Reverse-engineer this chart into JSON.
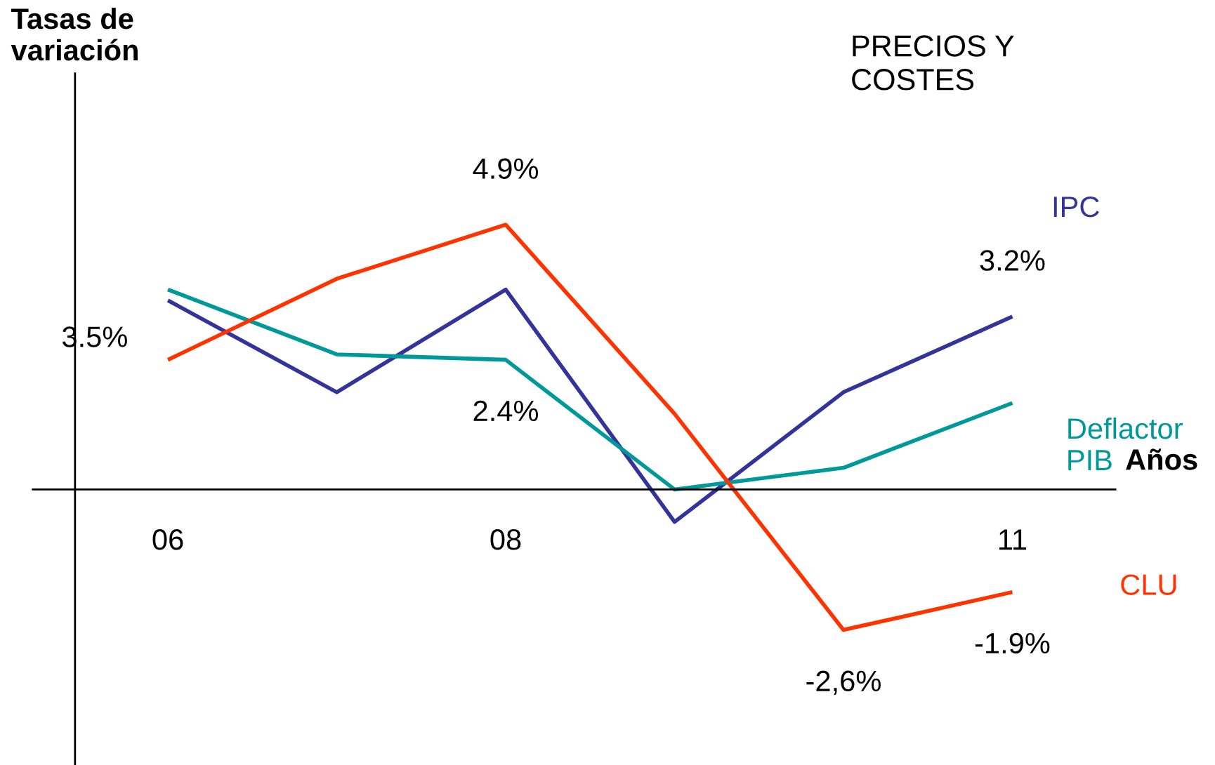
{
  "chart_data": {
    "type": "line",
    "title": "PRECIOS Y\nCOSTES",
    "xlabel": "Años",
    "annotations": [
      "Tasas de\nvariación"
    ],
    "categories": [
      "06",
      null,
      "08",
      null,
      null,
      "11"
    ],
    "ylim": [
      -5.1,
      7.7
    ],
    "tick_labels": "x",
    "legend": false,
    "grid": false,
    "marker": "none",
    "line_style": "solid",
    "series": [
      {
        "name": "IPC",
        "color": "#333399",
        "values": [
          3.5,
          1.8,
          3.7,
          -0.6,
          1.8,
          3.2
        ],
        "value_labels": [
          "3.5%",
          null,
          null,
          null,
          null,
          "3.2%"
        ]
      },
      {
        "name": "Deflactor\nPIB",
        "color": "#009999",
        "values": [
          3.7,
          2.5,
          2.4,
          0.0,
          0.4,
          1.6
        ],
        "value_labels": [
          null,
          null,
          "2.4%",
          null,
          null,
          null
        ]
      },
      {
        "name": "CLU",
        "color": "#ff3300",
        "values": [
          2.4,
          3.9,
          4.9,
          1.4,
          -2.6,
          -1.9
        ],
        "value_labels": [
          null,
          null,
          "4.9%",
          null,
          "-2,6%",
          "-1.9%"
        ]
      }
    ]
  }
}
